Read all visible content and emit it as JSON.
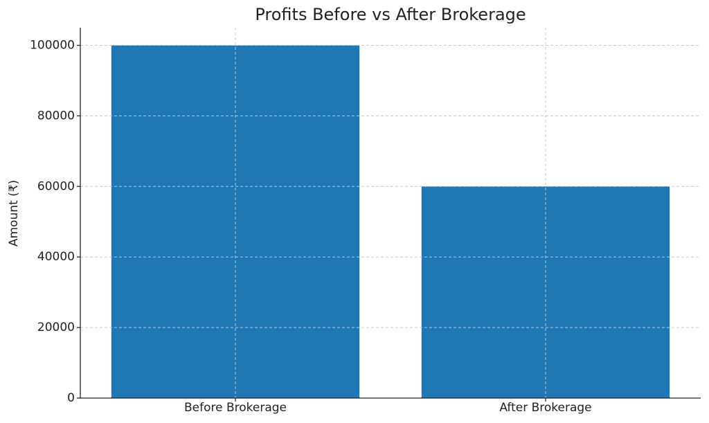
{
  "chart_data": {
    "type": "bar",
    "title": "Profits Before vs After Brokerage",
    "y_label": "Amount (₹)",
    "categories": [
      "Before Brokerage",
      "After Brokerage"
    ],
    "values": [
      100000,
      60000
    ],
    "color": "#1f77b4",
    "ylim": [
      0,
      105000
    ],
    "yticks": [
      0,
      20000,
      40000,
      60000,
      80000,
      100000
    ],
    "grid": true
  }
}
